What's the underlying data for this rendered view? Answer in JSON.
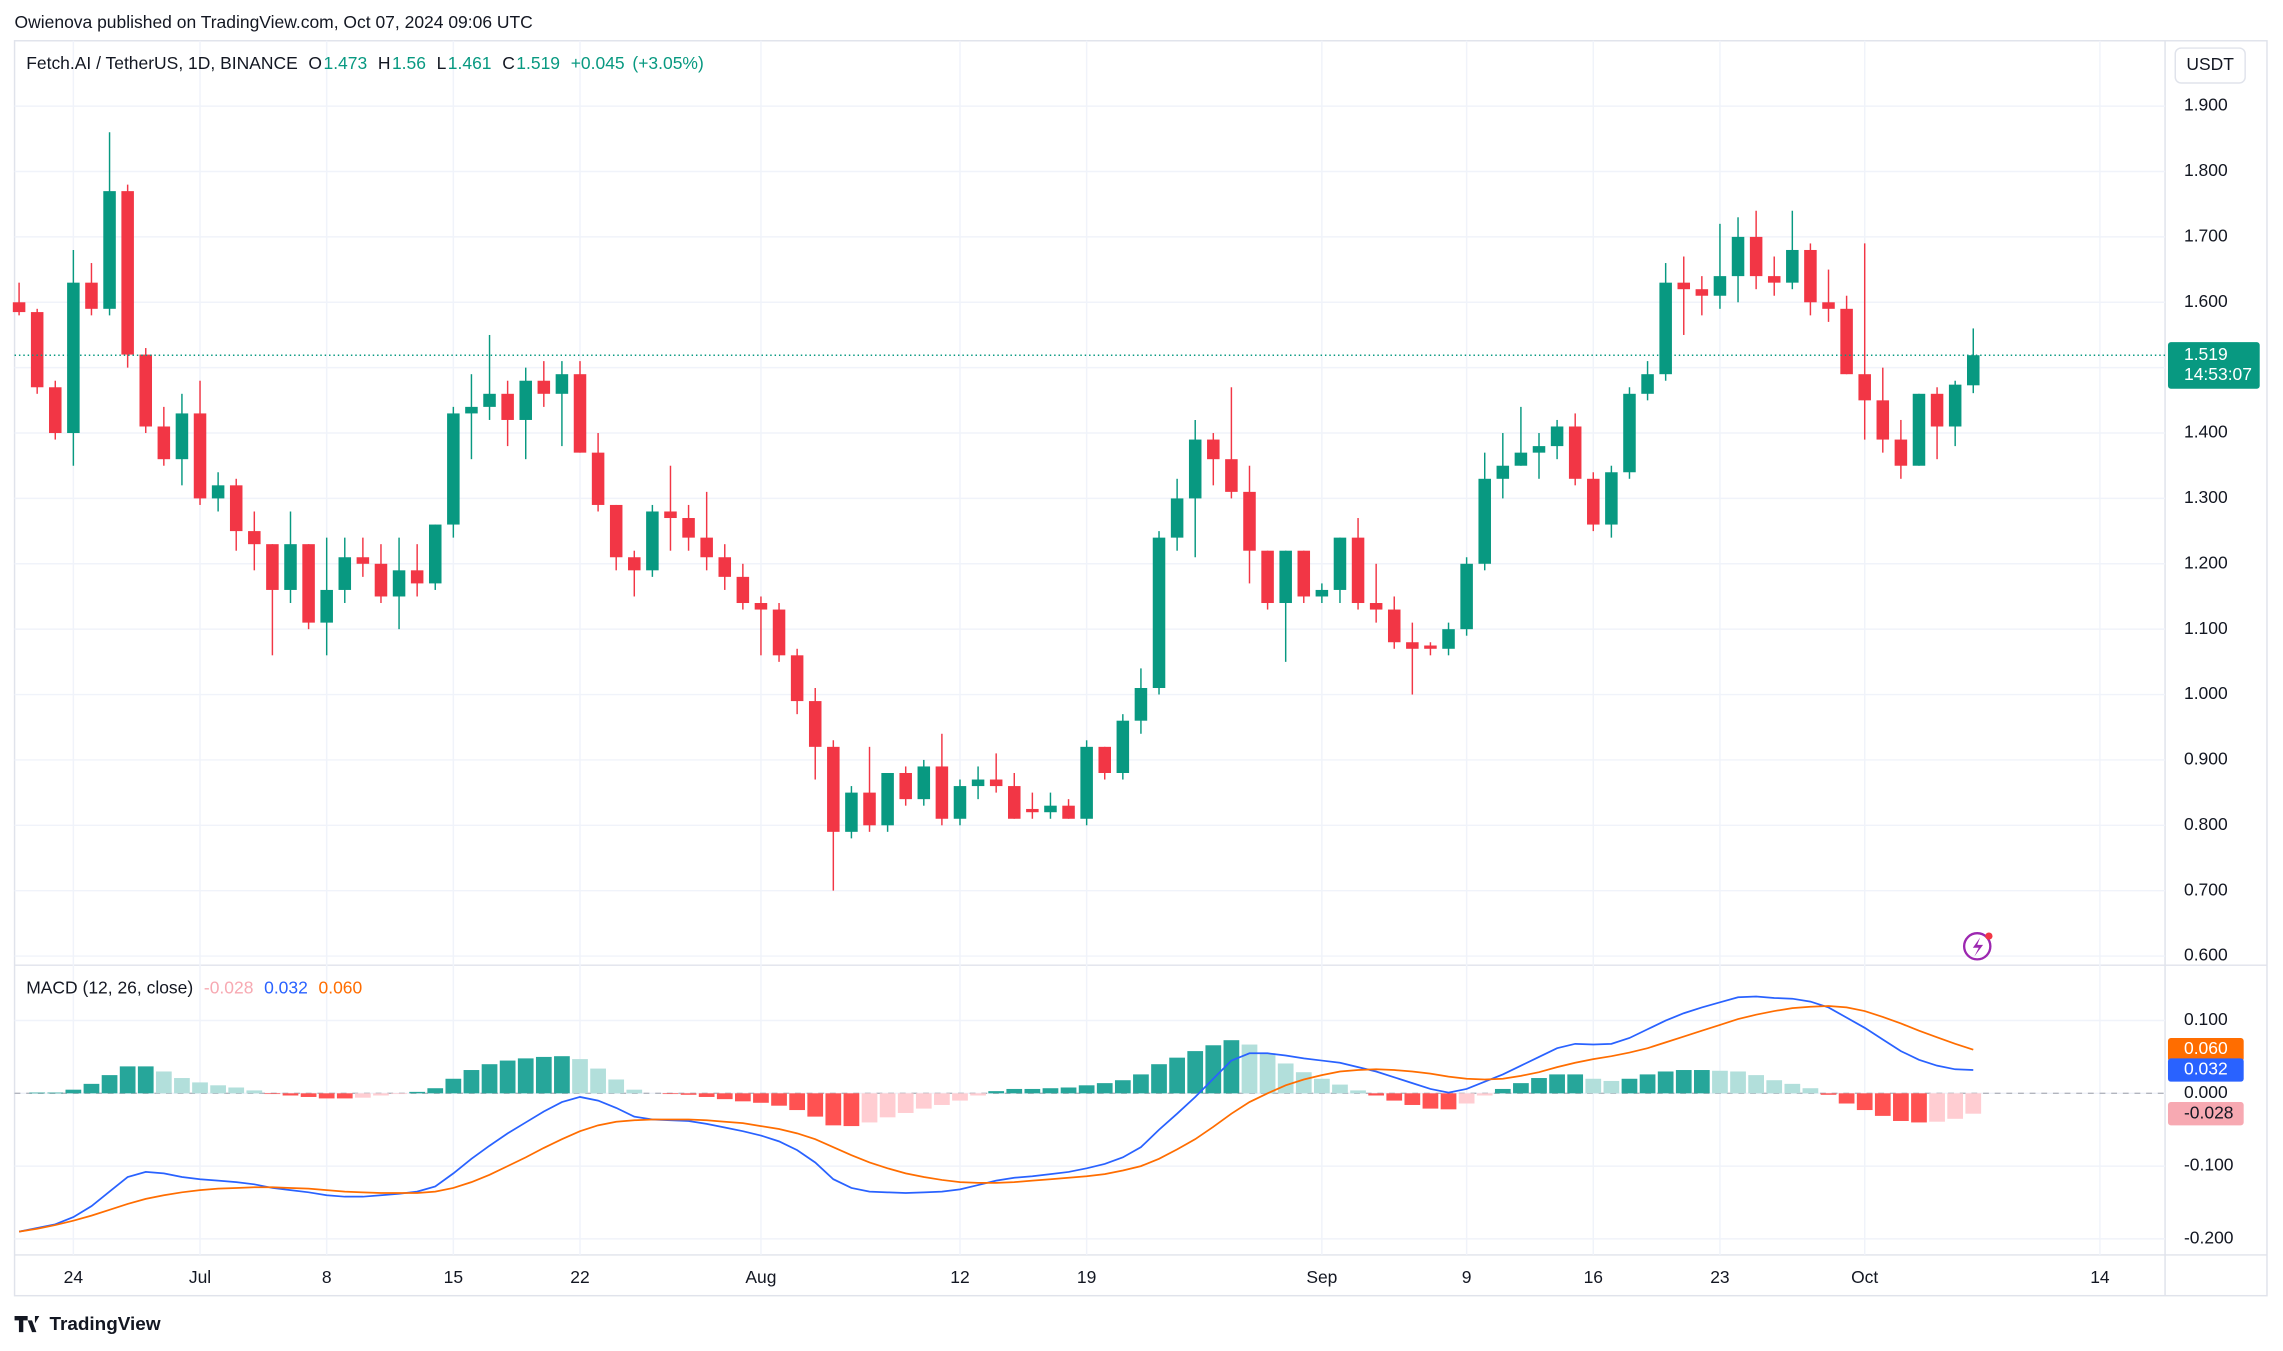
{
  "header": {
    "publisher": "Owienova published on TradingView.com, Oct 07, 2024 09:06 UTC",
    "brand": "TradingView",
    "currency": "USDT"
  },
  "chart_data": [
    {
      "type": "candlestick",
      "title": "Fetch.AI / TetherUS, 1D, BINANCE",
      "legend_labels": [
        "O",
        "H",
        "L",
        "C"
      ],
      "change": "+0.045",
      "change_pct": "(+3.05%)",
      "countdown": "14:53:07",
      "up_color": "#089981",
      "down_color": "#f23645",
      "open": [
        1.6,
        1.585,
        1.47,
        1.4,
        1.63,
        1.59,
        1.77,
        1.52,
        1.41,
        1.36,
        1.43,
        1.3,
        1.32,
        1.25,
        1.23,
        1.16,
        1.23,
        1.11,
        1.16,
        1.21,
        1.2,
        1.15,
        1.19,
        1.17,
        1.26,
        1.43,
        1.44,
        1.46,
        1.42,
        1.48,
        1.46,
        1.49,
        1.37,
        1.29,
        1.21,
        1.19,
        1.28,
        1.27,
        1.24,
        1.21,
        1.18,
        1.14,
        1.13,
        1.06,
        0.99,
        0.92,
        0.79,
        0.85,
        0.8,
        0.88,
        0.84,
        0.89,
        0.81,
        0.86,
        0.87,
        0.86,
        0.825,
        0.82,
        0.83,
        0.81,
        0.92,
        0.88,
        0.96,
        1.01,
        1.24,
        1.3,
        1.39,
        1.36,
        1.31,
        1.22,
        1.14,
        1.22,
        1.15,
        1.16,
        1.24,
        1.14,
        1.13,
        1.08,
        1.075,
        1.07,
        1.1,
        1.2,
        1.33,
        1.35,
        1.37,
        1.38,
        1.41,
        1.33,
        1.26,
        1.34,
        1.46,
        1.49,
        1.63,
        1.62,
        1.61,
        1.64,
        1.7,
        1.64,
        1.63,
        1.68,
        1.6,
        1.59,
        1.49,
        1.45,
        1.39,
        1.35,
        1.46,
        1.41,
        1.473
      ],
      "high": [
        1.63,
        1.59,
        1.48,
        1.68,
        1.66,
        1.86,
        1.78,
        1.53,
        1.44,
        1.46,
        1.48,
        1.34,
        1.33,
        1.28,
        1.23,
        1.28,
        1.23,
        1.24,
        1.24,
        1.24,
        1.23,
        1.24,
        1.23,
        1.26,
        1.44,
        1.49,
        1.55,
        1.48,
        1.5,
        1.51,
        1.51,
        1.51,
        1.4,
        1.29,
        1.22,
        1.29,
        1.35,
        1.29,
        1.31,
        1.23,
        1.2,
        1.15,
        1.14,
        1.07,
        1.01,
        0.93,
        0.86,
        0.92,
        0.88,
        0.89,
        0.9,
        0.94,
        0.87,
        0.89,
        0.91,
        0.88,
        0.85,
        0.85,
        0.84,
        0.93,
        0.92,
        0.97,
        1.04,
        1.25,
        1.33,
        1.42,
        1.4,
        1.47,
        1.35,
        1.22,
        1.22,
        1.22,
        1.17,
        1.24,
        1.27,
        1.2,
        1.15,
        1.11,
        1.08,
        1.11,
        1.21,
        1.37,
        1.4,
        1.44,
        1.4,
        1.42,
        1.43,
        1.34,
        1.35,
        1.47,
        1.51,
        1.66,
        1.67,
        1.64,
        1.72,
        1.73,
        1.74,
        1.67,
        1.74,
        1.69,
        1.65,
        1.61,
        1.69,
        1.5,
        1.42,
        1.46,
        1.47,
        1.48,
        1.56
      ],
      "low": [
        1.58,
        1.46,
        1.39,
        1.35,
        1.58,
        1.58,
        1.5,
        1.4,
        1.35,
        1.32,
        1.29,
        1.28,
        1.22,
        1.19,
        1.06,
        1.14,
        1.1,
        1.06,
        1.14,
        1.18,
        1.14,
        1.1,
        1.15,
        1.16,
        1.24,
        1.36,
        1.42,
        1.38,
        1.36,
        1.44,
        1.38,
        1.37,
        1.28,
        1.19,
        1.15,
        1.18,
        1.22,
        1.22,
        1.19,
        1.16,
        1.13,
        1.06,
        1.05,
        0.97,
        0.87,
        0.7,
        0.78,
        0.79,
        0.79,
        0.83,
        0.83,
        0.8,
        0.8,
        0.84,
        0.85,
        0.81,
        0.81,
        0.81,
        0.81,
        0.8,
        0.87,
        0.87,
        0.94,
        1.0,
        1.22,
        1.21,
        1.32,
        1.3,
        1.17,
        1.13,
        1.05,
        1.14,
        1.14,
        1.14,
        1.13,
        1.11,
        1.07,
        1.0,
        1.06,
        1.06,
        1.09,
        1.19,
        1.3,
        1.35,
        1.33,
        1.36,
        1.32,
        1.25,
        1.24,
        1.33,
        1.45,
        1.48,
        1.55,
        1.58,
        1.59,
        1.6,
        1.62,
        1.61,
        1.62,
        1.58,
        1.57,
        1.49,
        1.39,
        1.37,
        1.33,
        1.35,
        1.36,
        1.38,
        1.461
      ],
      "close": [
        1.585,
        1.47,
        1.4,
        1.63,
        1.59,
        1.77,
        1.52,
        1.41,
        1.36,
        1.43,
        1.3,
        1.32,
        1.25,
        1.23,
        1.16,
        1.23,
        1.11,
        1.16,
        1.21,
        1.2,
        1.15,
        1.19,
        1.17,
        1.26,
        1.43,
        1.44,
        1.46,
        1.42,
        1.48,
        1.46,
        1.49,
        1.37,
        1.29,
        1.21,
        1.19,
        1.28,
        1.27,
        1.24,
        1.21,
        1.18,
        1.14,
        1.13,
        1.06,
        0.99,
        0.92,
        0.79,
        0.85,
        0.8,
        0.88,
        0.84,
        0.89,
        0.81,
        0.86,
        0.87,
        0.86,
        0.81,
        0.82,
        0.83,
        0.81,
        0.92,
        0.88,
        0.96,
        1.01,
        1.24,
        1.3,
        1.39,
        1.36,
        1.31,
        1.22,
        1.14,
        1.22,
        1.15,
        1.16,
        1.24,
        1.14,
        1.13,
        1.08,
        1.07,
        1.07,
        1.1,
        1.2,
        1.33,
        1.35,
        1.37,
        1.38,
        1.41,
        1.33,
        1.26,
        1.34,
        1.46,
        1.49,
        1.63,
        1.62,
        1.61,
        1.64,
        1.7,
        1.64,
        1.63,
        1.68,
        1.6,
        1.59,
        1.49,
        1.45,
        1.39,
        1.35,
        1.46,
        1.41,
        1.474,
        1.519
      ],
      "xlim": [
        -0.25,
        118.6
      ],
      "xticks": [
        {
          "value": 3,
          "label": "24"
        },
        {
          "value": 10,
          "label": "Jul"
        },
        {
          "value": 17,
          "label": "8"
        },
        {
          "value": 24,
          "label": "15"
        },
        {
          "value": 31,
          "label": "22"
        },
        {
          "value": 41,
          "label": "Aug"
        },
        {
          "value": 52,
          "label": "12"
        },
        {
          "value": 59,
          "label": "19"
        },
        {
          "value": 72,
          "label": "Sep"
        },
        {
          "value": 80,
          "label": "9"
        },
        {
          "value": 87,
          "label": "16"
        },
        {
          "value": 94,
          "label": "23"
        },
        {
          "value": 102,
          "label": "Oct"
        },
        {
          "value": 115,
          "label": "14"
        }
      ],
      "ylim": [
        0.586,
        2.0
      ],
      "yticks": [
        {
          "value": 0.6,
          "label": "0.600"
        },
        {
          "value": 0.7,
          "label": "0.700"
        },
        {
          "value": 0.8,
          "label": "0.800"
        },
        {
          "value": 0.9,
          "label": "0.900"
        },
        {
          "value": 1.0,
          "label": "1.000"
        },
        {
          "value": 1.1,
          "label": "1.100"
        },
        {
          "value": 1.2,
          "label": "1.200"
        },
        {
          "value": 1.3,
          "label": "1.300"
        },
        {
          "value": 1.4,
          "label": "1.400"
        },
        {
          "value": 1.5,
          "label": "1.500"
        },
        {
          "value": 1.6,
          "label": "1.600"
        },
        {
          "value": 1.7,
          "label": "1.700"
        },
        {
          "value": 1.8,
          "label": "1.800"
        },
        {
          "value": 1.9,
          "label": "1.900"
        }
      ],
      "grid": true
    },
    {
      "type": "macd",
      "title": "MACD (12, 26, close)",
      "histogram_colors": {
        "up_strong": "#26a69a",
        "up_weak": "#b2dfdb",
        "down_weak": "#ffcdd2",
        "down_strong": "#ff5252"
      },
      "series": [
        {
          "color": "#f7a9b2",
          "values": [
            0,
            0.001,
            0.001,
            0.005,
            0.013,
            0.025,
            0.037,
            0.037,
            0.03,
            0.021,
            0.015,
            0.011,
            0.008,
            0.004,
            -0.001,
            -0.003,
            -0.005,
            -0.007,
            -0.007,
            -0.006,
            -0.003,
            -0.001,
            0.002,
            0.007,
            0.02,
            0.032,
            0.04,
            0.045,
            0.048,
            0.05,
            0.051,
            0.047,
            0.034,
            0.019,
            0.005,
            0,
            -0.001,
            -0.002,
            -0.005,
            -0.008,
            -0.011,
            -0.013,
            -0.017,
            -0.023,
            -0.032,
            -0.044,
            -0.045,
            -0.04,
            -0.033,
            -0.027,
            -0.021,
            -0.016,
            -0.01,
            -0.003,
            0.003,
            0.006,
            0.006,
            0.007,
            0.008,
            0.011,
            0.014,
            0.018,
            0.026,
            0.04,
            0.049,
            0.058,
            0.066,
            0.073,
            0.067,
            0.055,
            0.041,
            0.029,
            0.02,
            0.012,
            0.004,
            -0.003,
            -0.01,
            -0.016,
            -0.021,
            -0.022,
            -0.014,
            -0.003,
            0.006,
            0.014,
            0.021,
            0.026,
            0.026,
            0.02,
            0.017,
            0.02,
            0.026,
            0.03,
            0.032,
            0.032,
            0.031,
            0.03,
            0.025,
            0.018,
            0.013,
            0.007,
            -0.002,
            -0.014,
            -0.023,
            -0.031,
            -0.038,
            -0.04,
            -0.039,
            -0.035,
            -0.028
          ]
        },
        {
          "color": "#2962ff",
          "values": [
            -0.19,
            -0.185,
            -0.18,
            -0.17,
            -0.155,
            -0.135,
            -0.115,
            -0.108,
            -0.11,
            -0.115,
            -0.118,
            -0.12,
            -0.122,
            -0.125,
            -0.13,
            -0.133,
            -0.136,
            -0.14,
            -0.142,
            -0.142,
            -0.14,
            -0.138,
            -0.135,
            -0.128,
            -0.11,
            -0.09,
            -0.072,
            -0.055,
            -0.04,
            -0.025,
            -0.012,
            -0.005,
            -0.01,
            -0.02,
            -0.032,
            -0.036,
            -0.037,
            -0.038,
            -0.042,
            -0.047,
            -0.052,
            -0.058,
            -0.066,
            -0.078,
            -0.095,
            -0.118,
            -0.13,
            -0.135,
            -0.136,
            -0.137,
            -0.136,
            -0.135,
            -0.132,
            -0.126,
            -0.12,
            -0.116,
            -0.114,
            -0.111,
            -0.108,
            -0.103,
            -0.097,
            -0.088,
            -0.074,
            -0.05,
            -0.028,
            -0.005,
            0.02,
            0.045,
            0.055,
            0.055,
            0.052,
            0.048,
            0.045,
            0.042,
            0.036,
            0.03,
            0.022,
            0.014,
            0.006,
            0.001,
            0.006,
            0.016,
            0.026,
            0.038,
            0.05,
            0.062,
            0.068,
            0.067,
            0.068,
            0.076,
            0.088,
            0.1,
            0.11,
            0.118,
            0.125,
            0.132,
            0.133,
            0.131,
            0.13,
            0.126,
            0.118,
            0.104,
            0.09,
            0.074,
            0.058,
            0.046,
            0.038,
            0.033,
            0.032
          ]
        },
        {
          "color": "#ff6d00",
          "values": [
            -0.19,
            -0.186,
            -0.181,
            -0.175,
            -0.168,
            -0.16,
            -0.152,
            -0.145,
            -0.14,
            -0.136,
            -0.133,
            -0.131,
            -0.13,
            -0.129,
            -0.129,
            -0.13,
            -0.131,
            -0.133,
            -0.135,
            -0.136,
            -0.137,
            -0.137,
            -0.137,
            -0.135,
            -0.13,
            -0.122,
            -0.112,
            -0.1,
            -0.088,
            -0.075,
            -0.063,
            -0.052,
            -0.044,
            -0.039,
            -0.037,
            -0.036,
            -0.036,
            -0.036,
            -0.037,
            -0.039,
            -0.041,
            -0.045,
            -0.049,
            -0.055,
            -0.063,
            -0.074,
            -0.085,
            -0.095,
            -0.103,
            -0.11,
            -0.115,
            -0.119,
            -0.122,
            -0.123,
            -0.123,
            -0.122,
            -0.12,
            -0.118,
            -0.116,
            -0.114,
            -0.111,
            -0.106,
            -0.1,
            -0.09,
            -0.077,
            -0.063,
            -0.046,
            -0.028,
            -0.012,
            0.0,
            0.011,
            0.019,
            0.025,
            0.03,
            0.032,
            0.033,
            0.032,
            0.03,
            0.027,
            0.023,
            0.02,
            0.019,
            0.02,
            0.024,
            0.029,
            0.036,
            0.042,
            0.047,
            0.051,
            0.056,
            0.062,
            0.07,
            0.078,
            0.086,
            0.094,
            0.102,
            0.108,
            0.113,
            0.117,
            0.119,
            0.12,
            0.118,
            0.113,
            0.105,
            0.096,
            0.086,
            0.077,
            0.068,
            0.06
          ],
          "value_labels": [
            null,
            null,
            null,
            null,
            null,
            null,
            null,
            null,
            null,
            null,
            null,
            null,
            null,
            null,
            null,
            null,
            null,
            null,
            null,
            null,
            null,
            null,
            null,
            null,
            null,
            null,
            null,
            null,
            null,
            null,
            null,
            null,
            null,
            null,
            null,
            null,
            null,
            null,
            null,
            null,
            null,
            null,
            null,
            null,
            null,
            null,
            null,
            null,
            null,
            null,
            null,
            null,
            null,
            null,
            null,
            null,
            null,
            null,
            null,
            null,
            null,
            null,
            null,
            null,
            null,
            null,
            null,
            null,
            null,
            null,
            null,
            null,
            null,
            null,
            null,
            null,
            null,
            null,
            null,
            null,
            null,
            null,
            null,
            null,
            null,
            null,
            null,
            null,
            null,
            null,
            null,
            null,
            null,
            null,
            null,
            null,
            null,
            null,
            null,
            null,
            null,
            null,
            null,
            null,
            null,
            null,
            null,
            null,
            "0.060"
          ]
        }
      ],
      "ylim": [
        -0.222,
        0.176
      ],
      "yticks": [
        {
          "value": -0.2,
          "label": "-0.200"
        },
        {
          "value": -0.1,
          "label": "-0.100"
        },
        {
          "value": 0,
          "label": "0.000"
        },
        {
          "value": 0.1,
          "label": "0.100"
        }
      ],
      "grid": true
    }
  ]
}
